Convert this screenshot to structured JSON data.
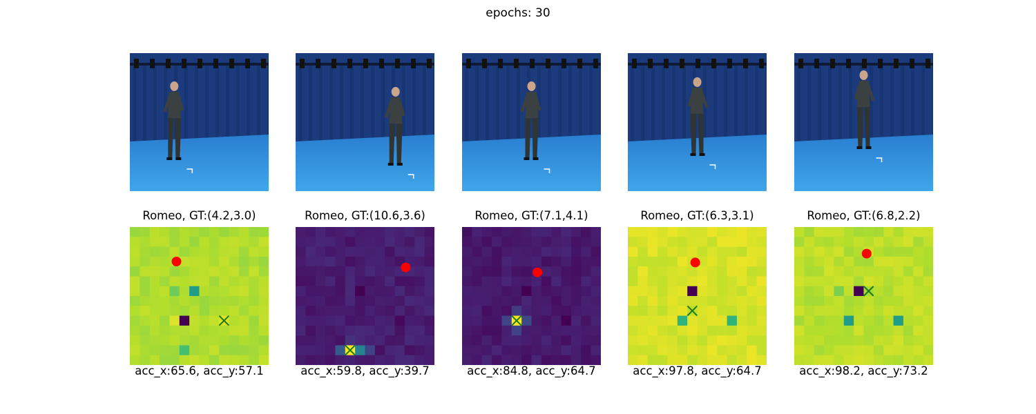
{
  "figure": {
    "suptitle": "epochs: 30"
  },
  "colors": {
    "background": "#2c5fa8",
    "curtain": "#1b3b7d",
    "floor": "#3fa6ea",
    "suit": "#3b4040",
    "gt_marker": "#ff0000",
    "pred_marker": "#1a7a1a"
  },
  "chart_data": [
    {
      "type": "heatmap",
      "title": "Romeo, GT:(4.2,3.0)",
      "caption": "acc_x:65.6, acc_y:57.1",
      "grid": [
        14,
        14
      ],
      "base_value": 0.88,
      "cells": [
        {
          "col": 5,
          "row": 9,
          "v": 0.0
        },
        {
          "col": 6,
          "row": 6,
          "v": 0.55
        },
        {
          "col": 5,
          "row": 12,
          "v": 0.7
        },
        {
          "col": 4,
          "row": 9,
          "v": 0.95
        },
        {
          "col": 9,
          "row": 9,
          "v": 0.95
        },
        {
          "col": 4,
          "row": 6,
          "v": 0.78
        }
      ],
      "gt": {
        "x": 4.7,
        "y": 3.5
      },
      "pred": {
        "x": 9.5,
        "y": 9.5
      }
    },
    {
      "type": "heatmap",
      "title": "Romeo, GT:(10.6,3.6)",
      "caption": "acc_x:59.8, acc_y:39.7",
      "grid": [
        14,
        14
      ],
      "base_value": 0.08,
      "cells": [
        {
          "col": 6,
          "row": 6,
          "v": 0.0
        },
        {
          "col": 5,
          "row": 12,
          "v": 1.0
        },
        {
          "col": 6,
          "row": 12,
          "v": 0.45
        },
        {
          "col": 4,
          "row": 12,
          "v": 0.28
        },
        {
          "col": 7,
          "row": 12,
          "v": 0.2
        },
        {
          "col": 10,
          "row": 9,
          "v": 0.02
        },
        {
          "col": 5,
          "row": 11,
          "v": 0.14
        }
      ],
      "gt": {
        "x": 11.1,
        "y": 4.1
      },
      "pred": {
        "x": 5.5,
        "y": 12.5
      }
    },
    {
      "type": "heatmap",
      "title": "Romeo, GT:(7.1,4.1)",
      "caption": "acc_x:84.8, acc_y:64.7",
      "grid": [
        14,
        14
      ],
      "base_value": 0.07,
      "cells": [
        {
          "col": 6,
          "row": 6,
          "v": 0.0
        },
        {
          "col": 10,
          "row": 9,
          "v": 0.0
        },
        {
          "col": 5,
          "row": 9,
          "v": 1.0
        },
        {
          "col": 4,
          "row": 9,
          "v": 0.2
        },
        {
          "col": 6,
          "row": 9,
          "v": 0.22
        },
        {
          "col": 5,
          "row": 8,
          "v": 0.18
        },
        {
          "col": 5,
          "row": 10,
          "v": 0.2
        }
      ],
      "gt": {
        "x": 7.6,
        "y": 4.6
      },
      "pred": {
        "x": 5.5,
        "y": 9.5
      }
    },
    {
      "type": "heatmap",
      "title": "Romeo, GT:(6.3,3.1)",
      "caption": "acc_x:97.8, acc_y:64.7",
      "grid": [
        14,
        14
      ],
      "base_value": 0.94,
      "cells": [
        {
          "col": 6,
          "row": 6,
          "v": 0.0
        },
        {
          "col": 5,
          "row": 9,
          "v": 0.65
        },
        {
          "col": 10,
          "row": 9,
          "v": 0.65
        },
        {
          "col": 6,
          "row": 8,
          "v": 0.9
        }
      ],
      "gt": {
        "x": 6.8,
        "y": 3.6
      },
      "pred": {
        "x": 6.5,
        "y": 8.5
      }
    },
    {
      "type": "heatmap",
      "title": "Romeo, GT:(6.8,2.2)",
      "caption": "acc_x:98.2, acc_y:73.2",
      "grid": [
        14,
        14
      ],
      "base_value": 0.9,
      "cells": [
        {
          "col": 6,
          "row": 6,
          "v": 0.0
        },
        {
          "col": 5,
          "row": 9,
          "v": 0.55
        },
        {
          "col": 10,
          "row": 9,
          "v": 0.55
        },
        {
          "col": 4,
          "row": 6,
          "v": 0.8
        }
      ],
      "gt": {
        "x": 7.3,
        "y": 2.7
      },
      "pred": {
        "x": 7.5,
        "y": 6.5
      }
    }
  ]
}
